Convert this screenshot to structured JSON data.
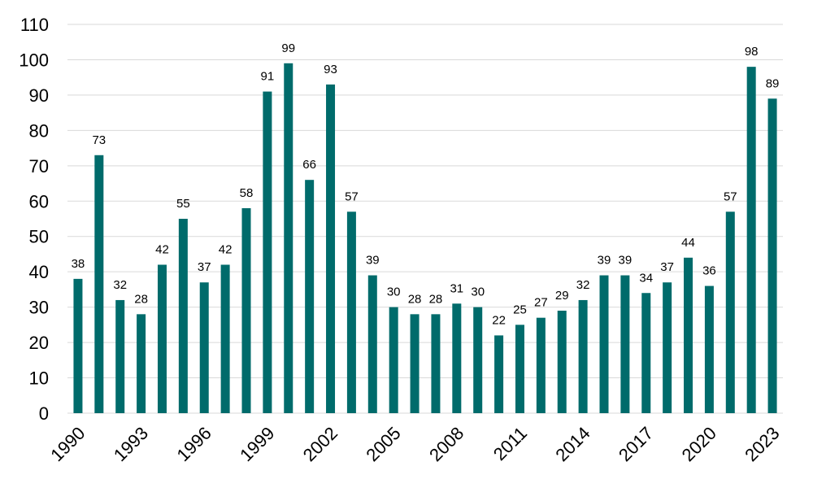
{
  "chart_data": {
    "type": "bar",
    "categories": [
      "1990",
      "1991",
      "1992",
      "1993",
      "1994",
      "1995",
      "1996",
      "1997",
      "1998",
      "1999",
      "2000",
      "2001",
      "2002",
      "2003",
      "2004",
      "2005",
      "2006",
      "2007",
      "2008",
      "2009",
      "2010",
      "2011",
      "2012",
      "2013",
      "2014",
      "2015",
      "2016",
      "2017",
      "2018",
      "2019",
      "2020",
      "2021",
      "2022",
      "2023"
    ],
    "values": [
      38,
      73,
      32,
      28,
      42,
      55,
      37,
      42,
      58,
      91,
      99,
      66,
      93,
      57,
      39,
      30,
      28,
      28,
      31,
      30,
      22,
      25,
      27,
      29,
      32,
      39,
      39,
      34,
      37,
      44,
      36,
      57,
      98,
      89
    ],
    "x_tick_labels": [
      "1990",
      "1993",
      "1996",
      "1999",
      "2002",
      "2005",
      "2008",
      "2011",
      "2014",
      "2017",
      "2020",
      "2023"
    ],
    "y_tick_labels": [
      "0",
      "10",
      "20",
      "30",
      "40",
      "50",
      "60",
      "70",
      "80",
      "90",
      "100",
      "110"
    ],
    "ylim": [
      0,
      110
    ],
    "grid": true,
    "bar_color": "#006B6B",
    "grid_color": "#d9d9d9"
  }
}
